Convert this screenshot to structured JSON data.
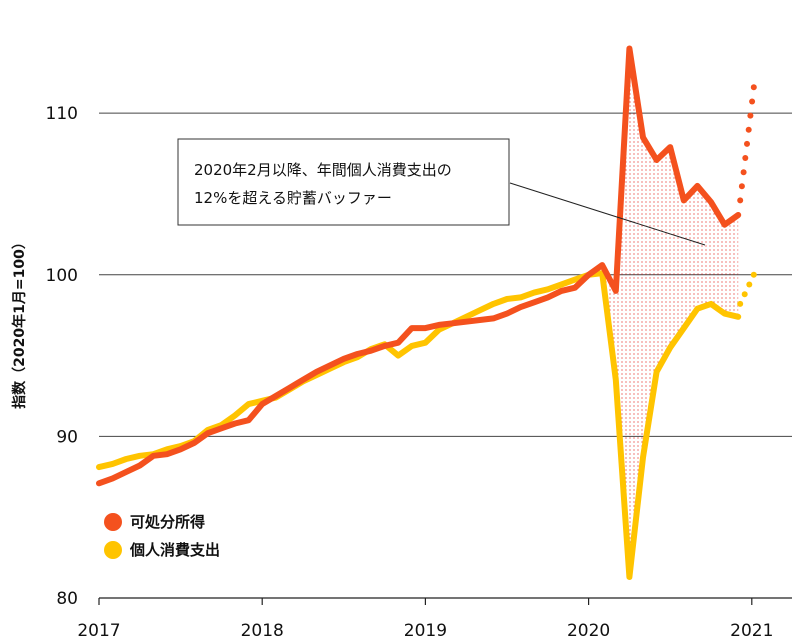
{
  "chart_data": {
    "type": "line",
    "ylabel": "指数（2020年1月=100）",
    "ylim": [
      80,
      115
    ],
    "yticks": [
      80,
      90,
      100,
      110
    ],
    "xticks": [
      "2017",
      "2018",
      "2019",
      "2020",
      "2021"
    ],
    "x": [
      "2017-01",
      "2017-02",
      "2017-03",
      "2017-04",
      "2017-05",
      "2017-06",
      "2017-07",
      "2017-08",
      "2017-09",
      "2017-10",
      "2017-11",
      "2017-12",
      "2018-01",
      "2018-02",
      "2018-03",
      "2018-04",
      "2018-05",
      "2018-06",
      "2018-07",
      "2018-08",
      "2018-09",
      "2018-10",
      "2018-11",
      "2018-12",
      "2019-01",
      "2019-02",
      "2019-03",
      "2019-04",
      "2019-05",
      "2019-06",
      "2019-07",
      "2019-08",
      "2019-09",
      "2019-10",
      "2019-11",
      "2019-12",
      "2020-01",
      "2020-02",
      "2020-03",
      "2020-04",
      "2020-05",
      "2020-06",
      "2020-07",
      "2020-08",
      "2020-09",
      "2020-10",
      "2020-11",
      "2020-12"
    ],
    "series": [
      {
        "name": "可処分所得",
        "color": "#f4511e",
        "values": [
          87.1,
          87.4,
          87.8,
          88.2,
          88.8,
          88.9,
          89.2,
          89.6,
          90.2,
          90.5,
          90.8,
          91.0,
          92.0,
          92.5,
          93.0,
          93.5,
          94.0,
          94.4,
          94.8,
          95.1,
          95.3,
          95.6,
          95.8,
          96.7,
          96.7,
          96.9,
          97.0,
          97.1,
          97.2,
          97.3,
          97.6,
          98.0,
          98.3,
          98.6,
          99.0,
          99.2,
          100.0,
          100.6,
          99.0,
          114.0,
          108.5,
          107.1,
          107.9,
          104.6,
          105.5,
          104.5,
          103.1,
          103.7
        ],
        "projection": [
          {
            "x": "2020-12",
            "value": 104.6
          },
          {
            "x": "2021-01",
            "value": 111.6
          }
        ]
      },
      {
        "name": "個人消費支出",
        "color": "#ffc400",
        "values": [
          88.1,
          88.3,
          88.6,
          88.8,
          88.9,
          89.2,
          89.4,
          89.7,
          90.4,
          90.7,
          91.3,
          92.0,
          92.2,
          92.4,
          92.9,
          93.4,
          93.8,
          94.2,
          94.6,
          94.9,
          95.4,
          95.7,
          95.0,
          95.6,
          95.8,
          96.6,
          97.0,
          97.4,
          97.8,
          98.2,
          98.5,
          98.6,
          98.9,
          99.1,
          99.4,
          99.7,
          100.0,
          100.1,
          93.5,
          81.3,
          88.7,
          94.0,
          95.5,
          96.7,
          97.9,
          98.2,
          97.6,
          97.4
        ],
        "projection": [
          {
            "x": "2020-12",
            "value": 98.2
          },
          {
            "x": "2021-01",
            "value": 100.0
          }
        ]
      }
    ],
    "annotation": {
      "line1": "2020年2月以降、年間個人消費支出の",
      "line2": "12%を超える貯蓄バッファー"
    },
    "legend": [
      "可処分所得",
      "個人消費支出"
    ],
    "grid": true
  }
}
